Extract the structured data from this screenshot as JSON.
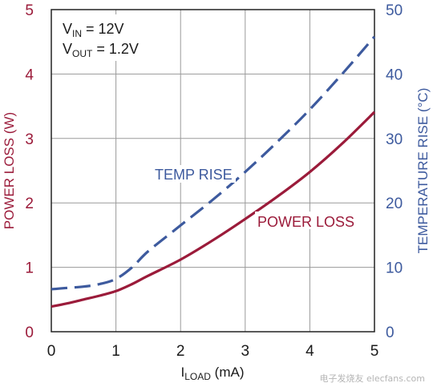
{
  "chart_data": {
    "type": "line",
    "xlabel": {
      "main": "I",
      "sub": "LOAD",
      "unit": " (mA)"
    },
    "ylabel_left": "POWER LOSS (W)",
    "ylabel_right": "TEMPERATURE RISE (°C)",
    "xlim": [
      0,
      5
    ],
    "ylim_left": [
      0,
      5
    ],
    "ylim_right": [
      0,
      50
    ],
    "x_ticks": [
      "0",
      "1",
      "2",
      "3",
      "4",
      "5"
    ],
    "y_ticks_left": [
      "0",
      "1",
      "2",
      "3",
      "4",
      "5"
    ],
    "y_ticks_right": [
      "0",
      "10",
      "20",
      "30",
      "40",
      "50"
    ],
    "grid": true,
    "annotation": {
      "line1": {
        "main": "V",
        "sub": "IN",
        "rest": " = 12V"
      },
      "line2": {
        "main": "V",
        "sub": "OUT",
        "rest": " = 1.2V"
      }
    },
    "series": [
      {
        "name": "POWER LOSS",
        "axis": "left",
        "style": "solid",
        "color": "#9b1b3a",
        "x": [
          0,
          0.25,
          0.5,
          0.75,
          1.0,
          1.25,
          1.5,
          2.0,
          2.5,
          3.0,
          3.5,
          4.0,
          4.5,
          5.0
        ],
        "y": [
          0.39,
          0.44,
          0.5,
          0.56,
          0.63,
          0.74,
          0.87,
          1.12,
          1.42,
          1.75,
          2.1,
          2.48,
          2.92,
          3.41
        ]
      },
      {
        "name": "TEMP RISE",
        "axis": "right",
        "style": "dashed",
        "color": "#3d5a9e",
        "x": [
          0,
          0.25,
          0.5,
          0.75,
          1.0,
          1.25,
          1.5,
          2.0,
          2.5,
          3.0,
          3.5,
          4.0,
          4.5,
          5.0
        ],
        "y": [
          6.6,
          6.8,
          7.0,
          7.4,
          8.2,
          10.0,
          12.5,
          16.5,
          20.5,
          24.8,
          29.5,
          34.5,
          40.0,
          45.8
        ]
      }
    ]
  },
  "watermark": "电子发烧友 elecfans.com"
}
